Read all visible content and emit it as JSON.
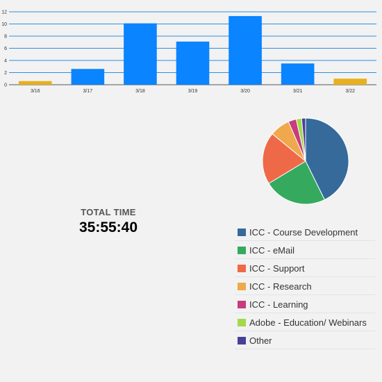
{
  "chart_data": [
    {
      "type": "bar",
      "categories": [
        "3/16",
        "3/17",
        "3/18",
        "3/19",
        "3/20",
        "3/21",
        "3/22"
      ],
      "values": [
        0.6,
        2.6,
        10.1,
        7.1,
        11.3,
        3.5,
        1.0
      ],
      "bar_colors": [
        "#e8b020",
        "#0a84ff",
        "#0a84ff",
        "#0a84ff",
        "#0a84ff",
        "#0a84ff",
        "#e8b020"
      ],
      "ylim": [
        0,
        12
      ],
      "yticks": [
        "0",
        "2",
        "4",
        "6",
        "8",
        "10",
        "12"
      ],
      "grid": true
    },
    {
      "type": "pie",
      "labels": [
        "ICC - Course Development",
        "ICC - eMail",
        "ICC - Support",
        "ICC - Research",
        "ICC - Learning",
        "Adobe - Education/ Webinars",
        "Other"
      ],
      "values": [
        42.5,
        23.5,
        19.5,
        7.5,
        3.0,
        2.0,
        1.5
      ],
      "colors": [
        "#356a9b",
        "#35aa5e",
        "#ee6948",
        "#efa84b",
        "#c63c7d",
        "#a3d94b",
        "#47409a"
      ],
      "legend": "bottom-right"
    }
  ],
  "total": {
    "label": "TOTAL TIME",
    "value": "35:55:40"
  }
}
